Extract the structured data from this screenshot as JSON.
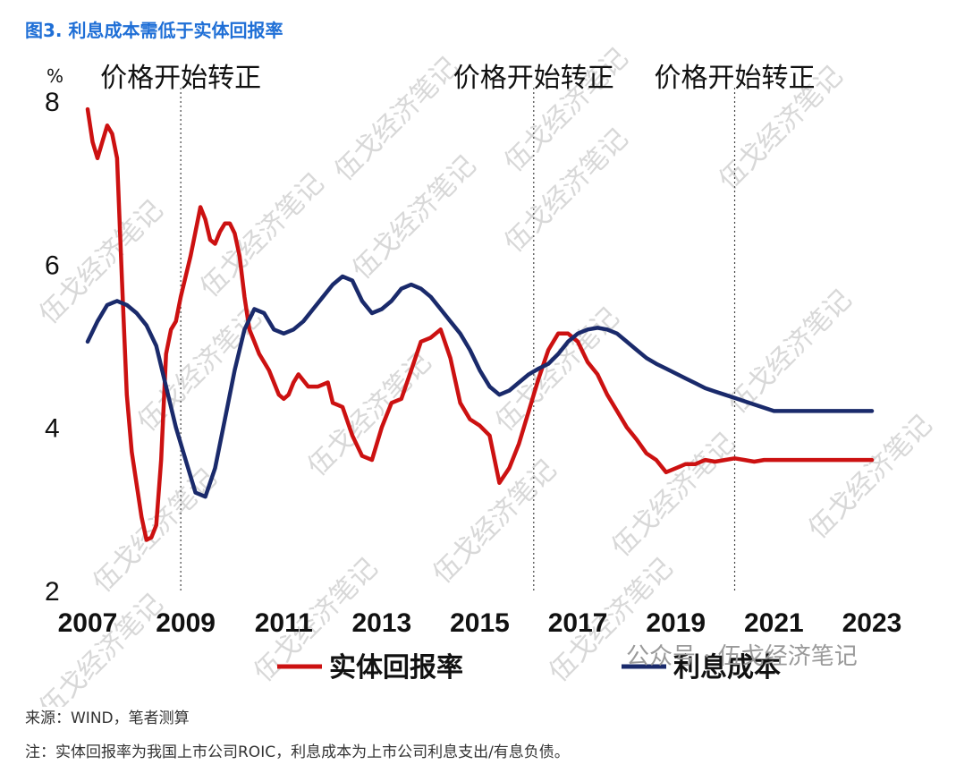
{
  "figure_title": "图3. 利息成本需低于实体回报率",
  "chart_data": {
    "type": "line",
    "ylabel": "%",
    "ylim": [
      2,
      8
    ],
    "y_ticks": [
      2,
      4,
      6,
      8
    ],
    "x_ticks": [
      2007,
      2009,
      2011,
      2013,
      2015,
      2017,
      2019,
      2021,
      2023
    ],
    "xlim": [
      2007.0,
      2023.0
    ],
    "grid": false,
    "legend_position": "bottom",
    "annotations": [
      {
        "text": "价格开始转正",
        "x": 2008.9
      },
      {
        "text": "价格开始转正",
        "x": 2016.1
      },
      {
        "text": "价格开始转正",
        "x": 2020.2
      }
    ],
    "series": [
      {
        "name": "实体回报率",
        "color": "#cc1111",
        "x": [
          2007.0,
          2007.1,
          2007.2,
          2007.3,
          2007.4,
          2007.5,
          2007.6,
          2007.7,
          2007.8,
          2007.9,
          2008.0,
          2008.1,
          2008.2,
          2008.3,
          2008.4,
          2008.5,
          2008.6,
          2008.7,
          2008.8,
          2008.9,
          2009.0,
          2009.1,
          2009.2,
          2009.3,
          2009.4,
          2009.5,
          2009.6,
          2009.7,
          2009.8,
          2009.9,
          2010.0,
          2010.1,
          2010.2,
          2010.3,
          2010.4,
          2010.5,
          2010.6,
          2010.7,
          2010.8,
          2010.9,
          2011.0,
          2011.1,
          2011.2,
          2011.3,
          2011.5,
          2011.7,
          2011.9,
          2012.0,
          2012.2,
          2012.4,
          2012.6,
          2012.8,
          2013.0,
          2013.2,
          2013.4,
          2013.6,
          2013.8,
          2014.0,
          2014.2,
          2014.4,
          2014.6,
          2014.8,
          2015.0,
          2015.2,
          2015.4,
          2015.6,
          2015.8,
          2016.0,
          2016.2,
          2016.4,
          2016.6,
          2016.8,
          2017.0,
          2017.2,
          2017.4,
          2017.6,
          2017.8,
          2018.0,
          2018.2,
          2018.4,
          2018.6,
          2018.8,
          2019.0,
          2019.2,
          2019.4,
          2019.6,
          2019.8,
          2020.0,
          2020.2,
          2020.4,
          2020.6,
          2020.8,
          2021.0,
          2021.2,
          2021.4,
          2021.6,
          2021.8,
          2022.0,
          2022.2,
          2022.4,
          2022.6,
          2022.8,
          2023.0
        ],
        "values": [
          7.9,
          7.5,
          7.3,
          7.5,
          7.7,
          7.6,
          7.3,
          5.8,
          4.4,
          3.7,
          3.3,
          2.9,
          2.62,
          2.65,
          2.8,
          3.6,
          4.9,
          5.2,
          5.3,
          5.6,
          5.85,
          6.1,
          6.4,
          6.7,
          6.55,
          6.3,
          6.25,
          6.4,
          6.5,
          6.5,
          6.38,
          6.1,
          5.6,
          5.2,
          5.05,
          4.9,
          4.8,
          4.7,
          4.55,
          4.4,
          4.35,
          4.4,
          4.55,
          4.65,
          4.5,
          4.5,
          4.55,
          4.3,
          4.25,
          3.9,
          3.65,
          3.6,
          4.0,
          4.3,
          4.35,
          4.7,
          5.05,
          5.1,
          5.2,
          4.85,
          4.3,
          4.1,
          4.02,
          3.9,
          3.32,
          3.5,
          3.8,
          4.2,
          4.6,
          4.95,
          5.15,
          5.15,
          5.05,
          4.8,
          4.65,
          4.4,
          4.2,
          4.0,
          3.85,
          3.68,
          3.6,
          3.45,
          3.5,
          3.55,
          3.55,
          3.6,
          3.58,
          3.6,
          3.62,
          3.6,
          3.58,
          3.6,
          3.6,
          3.6,
          3.6,
          3.6,
          3.6,
          3.6,
          3.6,
          3.6,
          3.6,
          3.6,
          3.6
        ]
      },
      {
        "name": "利息成本",
        "color": "#1a2a6b",
        "x": [
          2007.0,
          2007.2,
          2007.4,
          2007.6,
          2007.8,
          2008.0,
          2008.2,
          2008.4,
          2008.6,
          2008.8,
          2009.0,
          2009.2,
          2009.4,
          2009.6,
          2009.8,
          2010.0,
          2010.2,
          2010.4,
          2010.6,
          2010.8,
          2011.0,
          2011.2,
          2011.4,
          2011.6,
          2011.8,
          2012.0,
          2012.2,
          2012.4,
          2012.6,
          2012.8,
          2013.0,
          2013.2,
          2013.4,
          2013.6,
          2013.8,
          2014.0,
          2014.2,
          2014.4,
          2014.6,
          2014.8,
          2015.0,
          2015.2,
          2015.4,
          2015.6,
          2015.8,
          2016.0,
          2016.2,
          2016.4,
          2016.6,
          2016.8,
          2017.0,
          2017.2,
          2017.4,
          2017.6,
          2017.8,
          2018.0,
          2018.2,
          2018.4,
          2018.6,
          2018.8,
          2019.0,
          2019.2,
          2019.4,
          2019.6,
          2019.8,
          2020.0,
          2020.2,
          2020.4,
          2020.6,
          2020.8,
          2021.0,
          2021.2,
          2021.4,
          2021.6,
          2021.8,
          2022.0,
          2022.2,
          2022.4,
          2022.6,
          2022.8,
          2023.0
        ],
        "values": [
          5.05,
          5.3,
          5.5,
          5.55,
          5.5,
          5.4,
          5.25,
          5.0,
          4.5,
          4.0,
          3.6,
          3.2,
          3.15,
          3.5,
          4.1,
          4.7,
          5.2,
          5.45,
          5.4,
          5.2,
          5.15,
          5.2,
          5.3,
          5.45,
          5.6,
          5.75,
          5.85,
          5.8,
          5.55,
          5.4,
          5.45,
          5.55,
          5.7,
          5.75,
          5.7,
          5.6,
          5.45,
          5.3,
          5.15,
          4.95,
          4.7,
          4.5,
          4.4,
          4.45,
          4.55,
          4.65,
          4.72,
          4.78,
          4.9,
          5.05,
          5.15,
          5.2,
          5.22,
          5.2,
          5.15,
          5.05,
          4.95,
          4.85,
          4.78,
          4.72,
          4.66,
          4.6,
          4.54,
          4.48,
          4.44,
          4.4,
          4.36,
          4.32,
          4.28,
          4.24,
          4.2,
          4.2,
          4.2,
          4.2,
          4.2,
          4.2,
          4.2,
          4.2,
          4.2,
          4.2,
          4.2
        ]
      }
    ]
  },
  "watermark": {
    "text": "伍戈经济笔记",
    "brand_label": "公众号 · 伍戈经济笔记"
  },
  "source_note": "来源：WIND，笔者测算",
  "footnote": "注：实体回报率为我国上市公司ROIC，利息成本为上市公司利息支出/有息负债。"
}
